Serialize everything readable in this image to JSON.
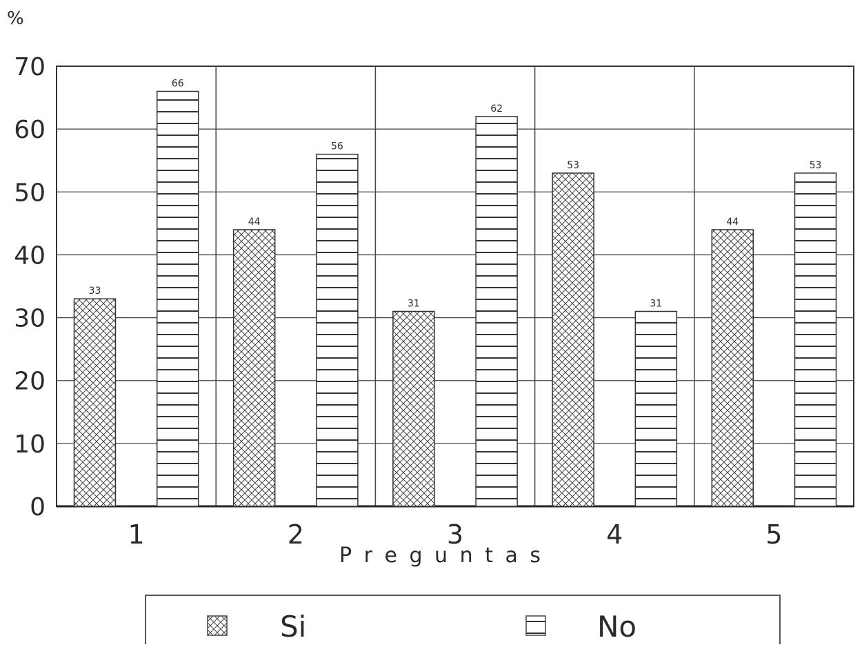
{
  "chart_data": {
    "type": "bar",
    "title": "",
    "ylabel": "%",
    "xlabel": "P r e g u n t a s",
    "categories": [
      "1",
      "2",
      "3",
      "4",
      "5"
    ],
    "ylim": [
      0,
      70
    ],
    "yticks": [
      0,
      10,
      20,
      30,
      40,
      50,
      60,
      70
    ],
    "grid": true,
    "legend_position": "bottom",
    "series": [
      {
        "name": "Si",
        "pattern": "crosshatch",
        "values": [
          33,
          44,
          31,
          53,
          44
        ],
        "labels": [
          "33",
          "44",
          "31",
          "53",
          "44"
        ]
      },
      {
        "name": "No",
        "pattern": "horizontal-lines",
        "values": [
          66,
          56,
          62,
          31,
          53
        ],
        "labels": [
          "66",
          "56",
          "62",
          "31",
          "53"
        ]
      }
    ]
  }
}
